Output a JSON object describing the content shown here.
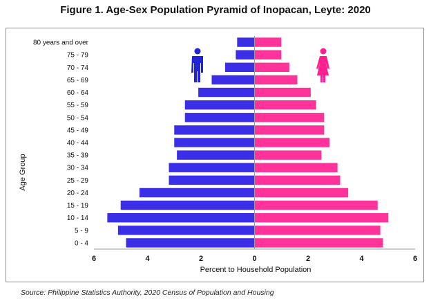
{
  "title": "Figure 1. Age-Sex Population Pyramid of Inopacan, Leyte: 2020",
  "source": "Source: Philippine Statistics Authority, 2020 Census of Population and Housing",
  "chart_data": {
    "type": "bar",
    "orientation": "horizontal-pyramid",
    "xlabel": "Percent to Household Population",
    "ylabel": "Age Group",
    "xlim": [
      -6,
      6
    ],
    "xticks": [
      -6,
      -4,
      -2,
      0,
      2,
      4,
      6
    ],
    "xtick_labels": [
      "6",
      "4",
      "2",
      "0",
      "2",
      "4",
      "6"
    ],
    "categories": [
      "0 - 4",
      "5 - 9",
      "10 - 14",
      "15 - 19",
      "20 - 24",
      "25 - 29",
      "30 - 34",
      "35 - 39",
      "40 - 44",
      "45 - 49",
      "50 - 54",
      "55 - 59",
      "60 - 64",
      "65 - 69",
      "70 - 74",
      "75 - 79",
      "80 years and over"
    ],
    "series": [
      {
        "color": "#3a2ee6",
        "values": [
          4.8,
          5.1,
          5.5,
          5.0,
          4.3,
          3.2,
          3.2,
          2.9,
          3.0,
          3.0,
          2.6,
          2.6,
          2.1,
          1.6,
          1.1,
          0.7,
          0.65
        ]
      },
      {
        "color": "#ff3399",
        "values": [
          4.8,
          4.7,
          5.0,
          4.6,
          3.5,
          3.2,
          3.1,
          2.5,
          2.8,
          2.6,
          2.6,
          2.3,
          2.1,
          1.6,
          1.3,
          1.0,
          1.0
        ]
      }
    ],
    "grid": false,
    "legend": "icons",
    "icons": [
      {
        "name": "male-icon",
        "color": "#1f24d6"
      },
      {
        "name": "female-icon",
        "color": "#ff1f8e"
      }
    ]
  }
}
